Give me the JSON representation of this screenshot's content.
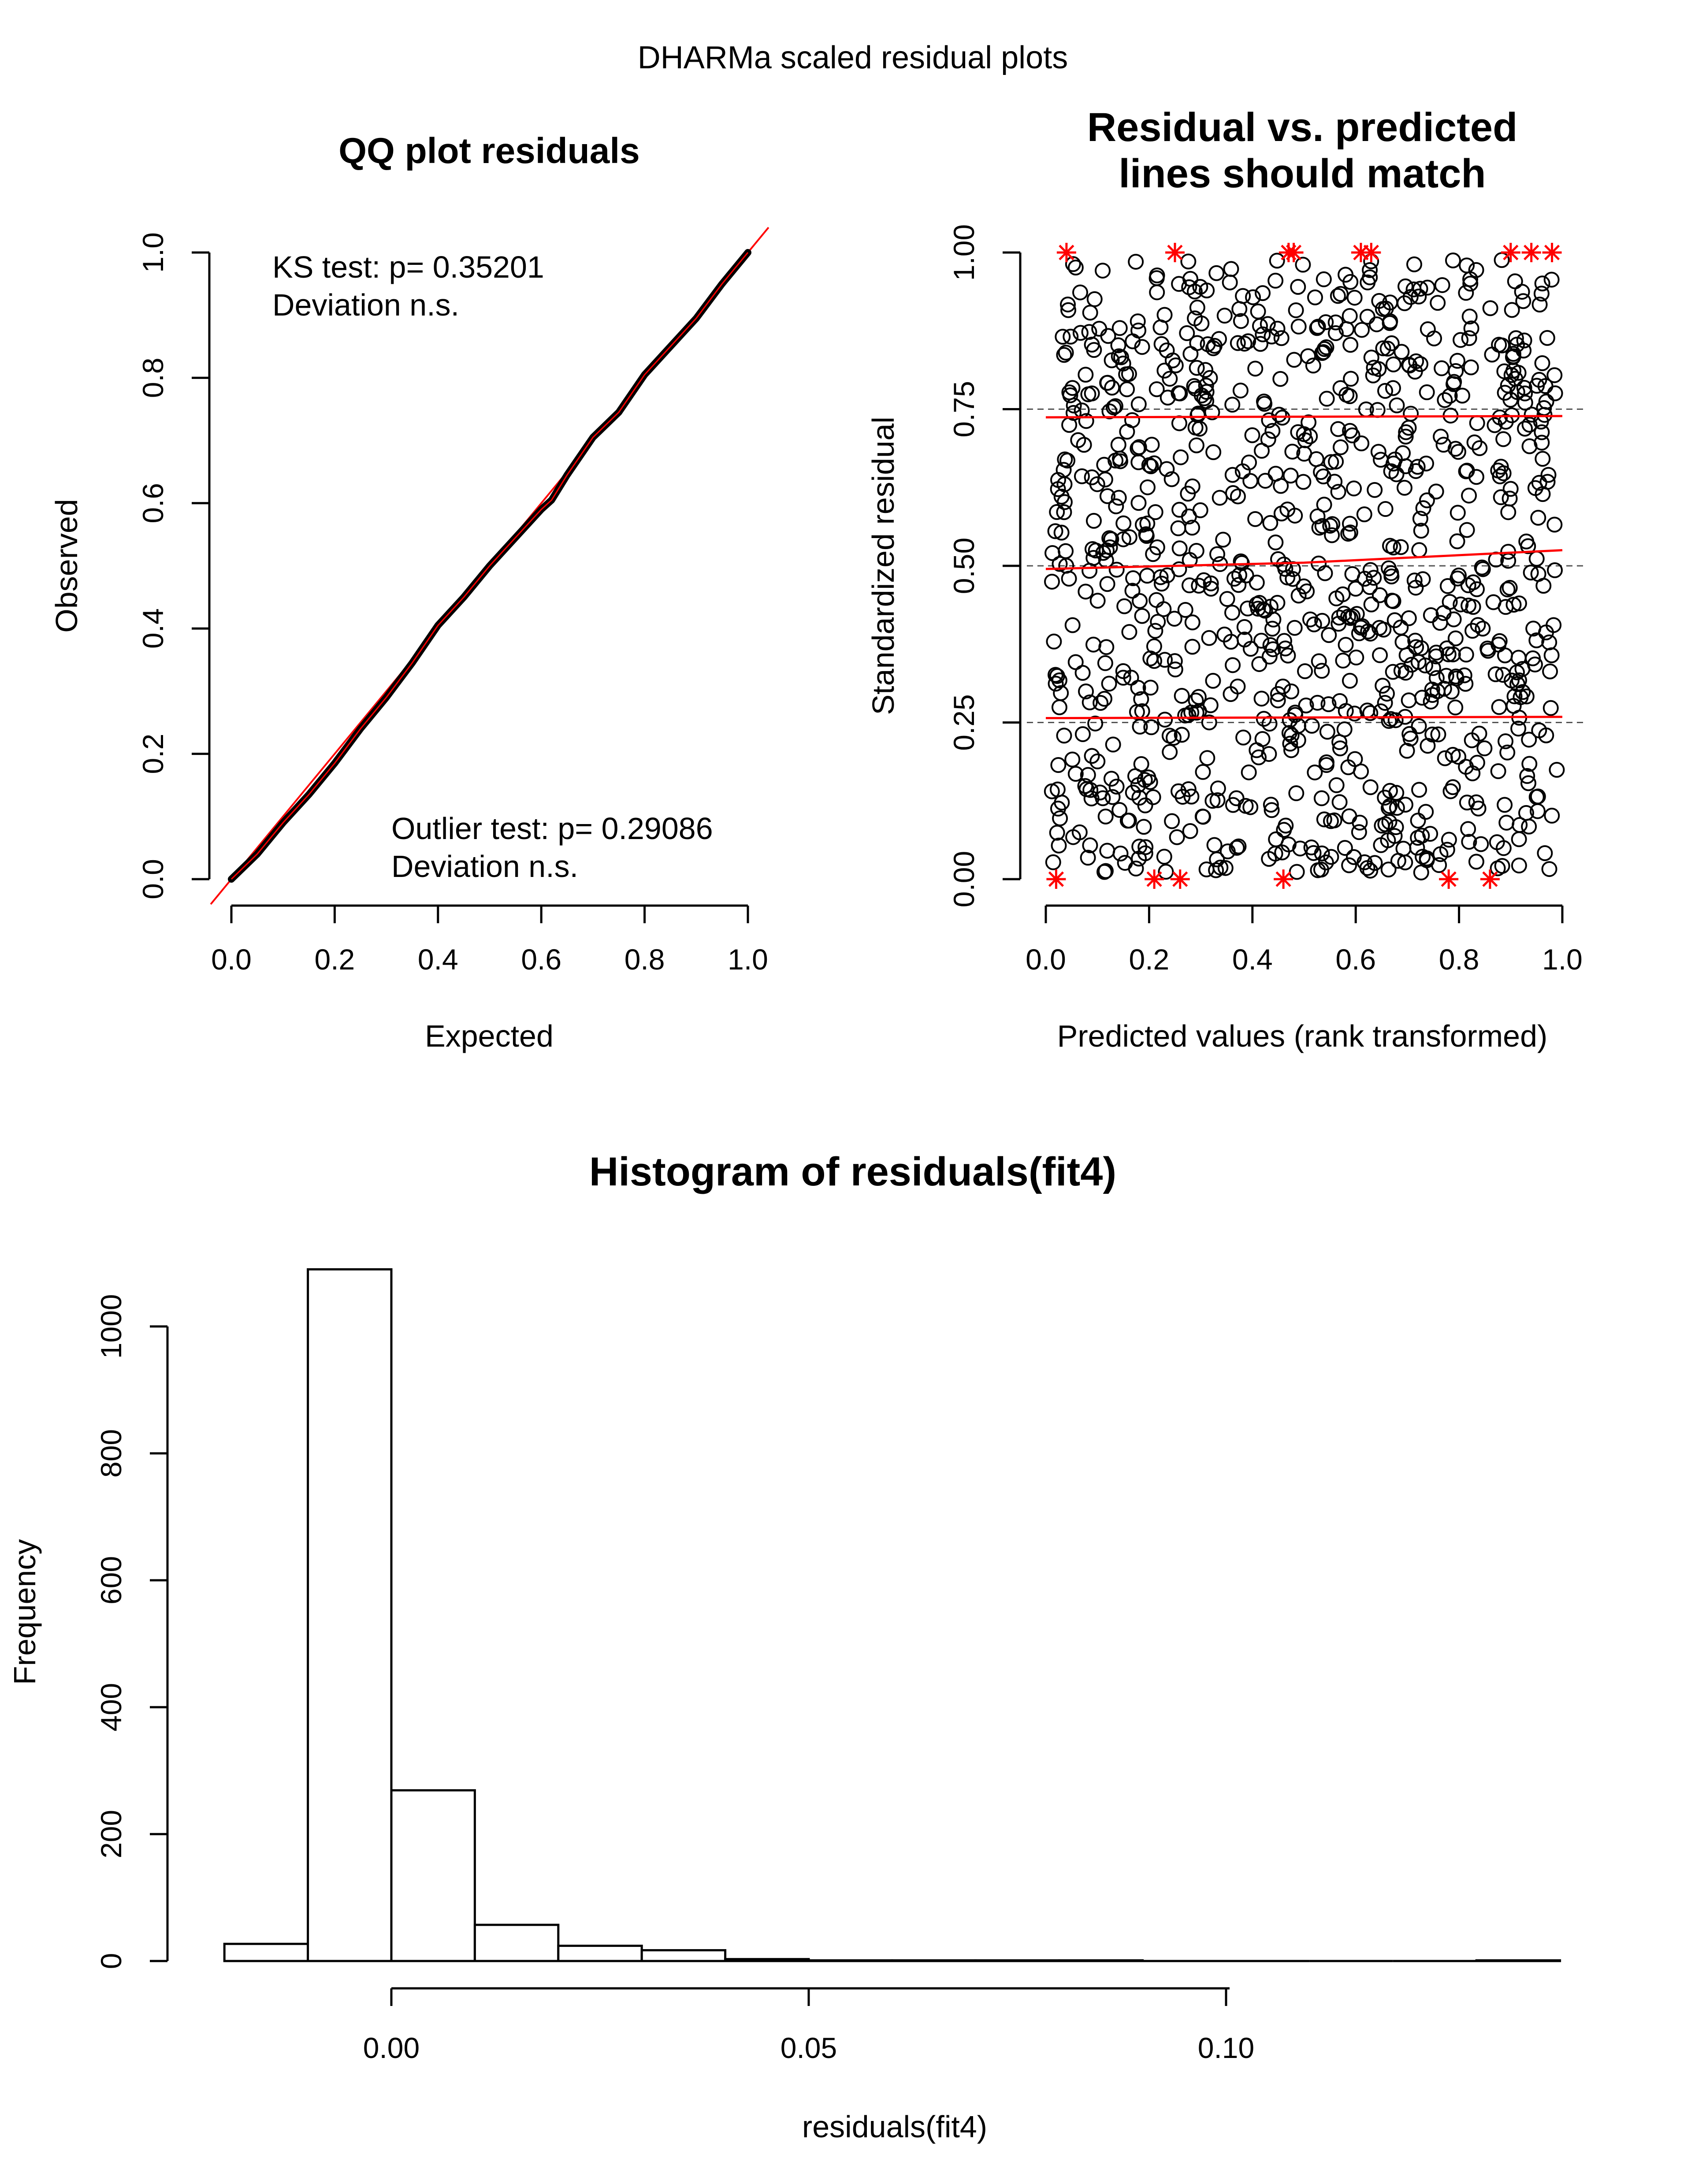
{
  "figure_title": "DHARMa scaled residual plots",
  "colors": {
    "ink": "#000000",
    "fit": "#ff0000",
    "reference": "#ff0000",
    "outlier": "#ff0000",
    "quantile_guides": "#555555"
  },
  "chart_data": [
    {
      "type": "line",
      "title": "QQ plot residuals",
      "xlabel": "Expected",
      "ylabel": "Observed",
      "xlim": [
        0,
        1
      ],
      "ylim": [
        0,
        1
      ],
      "x_ticks": [
        "0.0",
        "0.2",
        "0.4",
        "0.6",
        "0.8",
        "1.0"
      ],
      "y_ticks": [
        "0.0",
        "0.2",
        "0.4",
        "0.6",
        "0.8",
        "1.0"
      ],
      "reference_line": {
        "slope": 1,
        "intercept": 0,
        "color": "#ff0000"
      },
      "series": [
        {
          "x": [
            0.0,
            0.05,
            0.1,
            0.15,
            0.2,
            0.25,
            0.3,
            0.35,
            0.4,
            0.45,
            0.5,
            0.55,
            0.6,
            0.62,
            0.65,
            0.7,
            0.75,
            0.8,
            0.85,
            0.9,
            0.95,
            1.0
          ],
          "y": [
            0.0,
            0.04,
            0.09,
            0.135,
            0.185,
            0.24,
            0.29,
            0.345,
            0.405,
            0.45,
            0.5,
            0.545,
            0.59,
            0.605,
            0.645,
            0.705,
            0.745,
            0.805,
            0.85,
            0.895,
            0.95,
            1.0
          ]
        }
      ],
      "annotations": {
        "ks_test": "KS test: p= 0.35201",
        "ks_deviation": "Deviation  n.s.",
        "outlier_test": "Outlier test: p= 0.29086",
        "outlier_deviation": "Deviation  n.s."
      }
    },
    {
      "type": "scatter",
      "title": "Residual vs. predicted\n lines should match",
      "xlabel": "Predicted values (rank transformed)",
      "ylabel": "Standardized residual",
      "xlim": [
        0,
        1
      ],
      "ylim": [
        0,
        1
      ],
      "x_ticks": [
        "0.0",
        "0.2",
        "0.4",
        "0.6",
        "0.8",
        "1.0"
      ],
      "y_ticks": [
        "0.00",
        "0.25",
        "0.50",
        "0.75",
        "1.00"
      ],
      "n_points": 1000,
      "reference_lines": [
        0.25,
        0.5,
        0.75
      ],
      "quantile_fits": [
        {
          "quantile": 0.25,
          "x": [
            0,
            0.5,
            1
          ],
          "y": [
            0.257,
            0.258,
            0.259
          ]
        },
        {
          "quantile": 0.5,
          "x": [
            0,
            0.5,
            1
          ],
          "y": [
            0.495,
            0.505,
            0.525
          ]
        },
        {
          "quantile": 0.75,
          "x": [
            0,
            0.5,
            1
          ],
          "y": [
            0.737,
            0.738,
            0.739
          ]
        }
      ],
      "outliers": {
        "marker": "asterisk",
        "top_x": [
          0.04,
          0.25,
          0.47,
          0.48,
          0.61,
          0.63,
          0.9,
          0.94,
          0.98
        ],
        "bottom_x": [
          0.02,
          0.21,
          0.26,
          0.46,
          0.78,
          0.86
        ]
      }
    },
    {
      "type": "bar",
      "title": "Histogram of residuals(fit4)",
      "xlabel": "residuals(fit4)",
      "ylabel": "Frequency",
      "xlim": [
        -0.02,
        0.14
      ],
      "ylim": [
        0,
        1100
      ],
      "x_tick_values": [
        0.0,
        0.05,
        0.1
      ],
      "x_ticks": [
        "0.00",
        "0.05",
        "0.10"
      ],
      "y_tick_values": [
        0,
        200,
        400,
        600,
        800,
        1000
      ],
      "y_ticks": [
        "0",
        "200",
        "400",
        "600",
        "800",
        "1000"
      ],
      "bin_width": 0.01,
      "bin_starts": [
        -0.02,
        -0.01,
        0.0,
        0.01,
        0.02,
        0.03,
        0.04,
        0.05,
        0.06,
        0.07,
        0.08,
        0.09,
        0.1,
        0.11,
        0.12,
        0.13
      ],
      "values": [
        27,
        1090,
        269,
        57,
        24,
        17,
        3,
        1,
        1,
        1,
        1,
        0,
        0,
        0,
        0,
        1
      ]
    }
  ]
}
